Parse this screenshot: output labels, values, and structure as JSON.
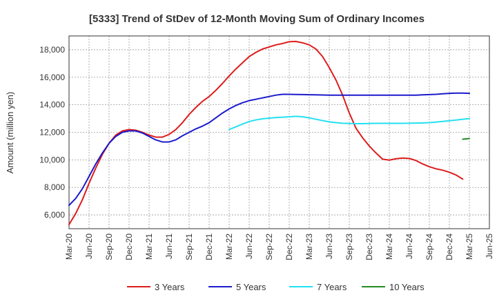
{
  "chart_data": {
    "type": "line",
    "title": "[5333]  Trend of StDev of 12-Month Moving Sum of Ordinary Incomes",
    "ylabel": "Amount (million yen)",
    "xlabel": "",
    "ylim": [
      5000,
      19000
    ],
    "yticks": [
      6000,
      8000,
      10000,
      12000,
      14000,
      16000,
      18000
    ],
    "ytick_labels": [
      "6,000",
      "8,000",
      "10,000",
      "12,000",
      "14,000",
      "16,000",
      "18,000"
    ],
    "x_start": "Mar-20",
    "x_months": 63,
    "xticks": [
      "Mar-20",
      "Jun-20",
      "Sep-20",
      "Dec-20",
      "Mar-21",
      "Jun-21",
      "Sep-21",
      "Dec-21",
      "Mar-22",
      "Jun-22",
      "Sep-22",
      "Dec-22",
      "Mar-23",
      "Jun-23",
      "Sep-23",
      "Dec-23",
      "Mar-24",
      "Jun-24",
      "Sep-24",
      "Dec-24",
      "Mar-25",
      "Jun-25"
    ],
    "grid": true,
    "legend_position": "bottom",
    "series": [
      {
        "name": "3 Years",
        "color": "#dd1c1c",
        "start_offset": 0,
        "values": [
          5300,
          6100,
          7100,
          8300,
          9400,
          10400,
          11200,
          11800,
          12100,
          12200,
          12150,
          12000,
          11800,
          11650,
          11650,
          11850,
          12200,
          12700,
          13300,
          13800,
          14250,
          14600,
          15050,
          15550,
          16100,
          16600,
          17050,
          17500,
          17800,
          18050,
          18200,
          18350,
          18450,
          18580,
          18600,
          18500,
          18350,
          18050,
          17500,
          16700,
          15800,
          14700,
          13400,
          12300,
          11600,
          11000,
          10500,
          10050,
          9980,
          10080,
          10130,
          10100,
          9950,
          9700,
          9500,
          9350,
          9250,
          9100,
          8900,
          8600
        ]
      },
      {
        "name": "5 Years",
        "color": "#1a1acc",
        "start_offset": 0,
        "values": [
          6700,
          7200,
          7900,
          8800,
          9700,
          10500,
          11200,
          11700,
          12000,
          12100,
          12100,
          11950,
          11700,
          11450,
          11300,
          11300,
          11450,
          11750,
          12000,
          12250,
          12450,
          12700,
          13050,
          13400,
          13700,
          13950,
          14150,
          14300,
          14400,
          14500,
          14600,
          14700,
          14760,
          14760,
          14750,
          14740,
          14730,
          14720,
          14710,
          14700,
          14700,
          14700,
          14700,
          14700,
          14700,
          14700,
          14700,
          14700,
          14700,
          14700,
          14700,
          14700,
          14700,
          14720,
          14740,
          14760,
          14800,
          14830,
          14850,
          14850,
          14830
        ]
      },
      {
        "name": "7 Years",
        "color": "#22e0f0",
        "start_offset": 24,
        "values": [
          12200,
          12400,
          12600,
          12780,
          12900,
          12980,
          13030,
          13070,
          13100,
          13130,
          13160,
          13130,
          13050,
          12950,
          12850,
          12760,
          12700,
          12660,
          12640,
          12630,
          12630,
          12640,
          12650,
          12650,
          12650,
          12650,
          12650,
          12660,
          12670,
          12680,
          12700,
          12740,
          12790,
          12840,
          12890,
          12950,
          13000
        ]
      },
      {
        "name": "10 Years",
        "color": "#228b22",
        "start_offset": 59,
        "values": [
          11500,
          11550
        ]
      }
    ]
  }
}
